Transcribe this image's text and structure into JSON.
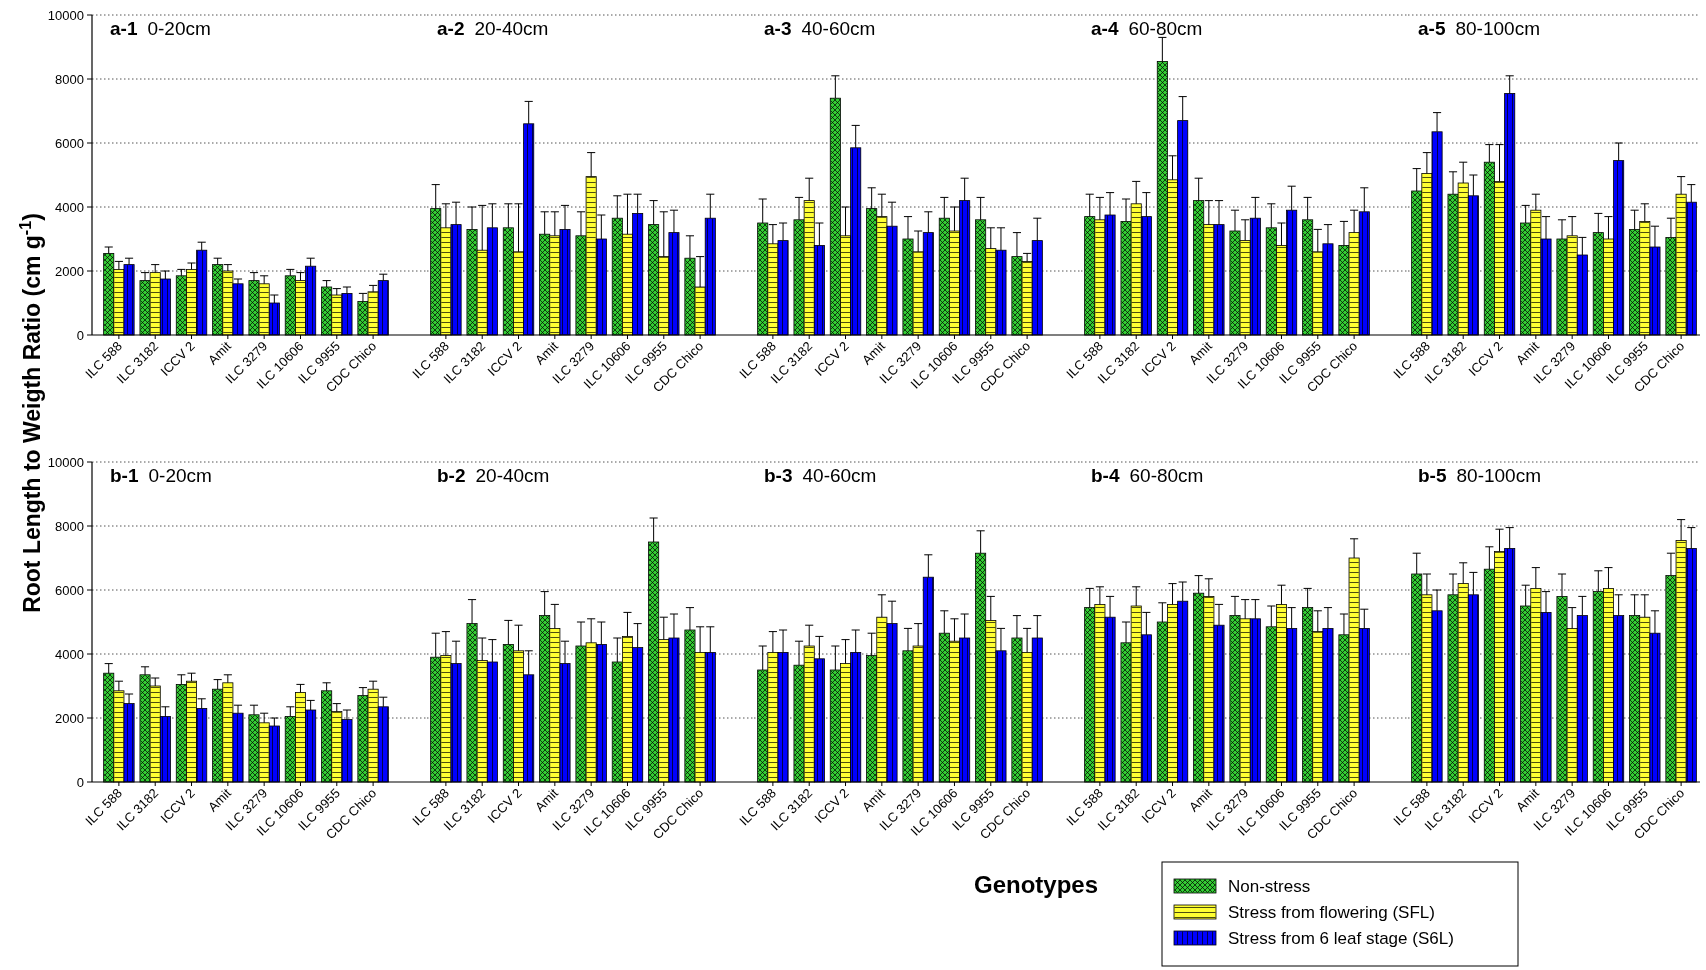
{
  "chart_data": [
    {
      "type": "bar",
      "title": "a-1 0-20cm",
      "ylabel": "Root Length to Weigth Ratio (cm g$^{-1}$)",
      "categories": [
        "ILC 588",
        "ILC 3182",
        "ICCV 2",
        "Amit",
        "ILC 3279",
        "ILC 10606",
        "ILC 9955",
        "CDC Chico"
      ],
      "ylim": [
        0,
        10000
      ],
      "yticks": [
        0,
        2000,
        4000,
        6000,
        8000,
        10000
      ],
      "grid": "y",
      "series": [
        {
          "color": "#33cc33",
          "values": [
            2550,
            1700,
            1850,
            2200,
            1700,
            1850,
            1500,
            1050
          ],
          "errors": [
            [
              2550,
              2750
            ],
            [
              1700,
              1950
            ],
            [
              1850,
              2050
            ],
            [
              2200,
              2400
            ],
            [
              1700,
              1950
            ],
            [
              1850,
              2050
            ],
            [
              1500,
              1700
            ],
            [
              1050,
              1300
            ]
          ]
        },
        {
          "color": "#ffff33",
          "values": [
            2050,
            1950,
            2050,
            2000,
            1600,
            1700,
            1250,
            1350
          ],
          "errors": [
            [
              2050,
              2300
            ],
            [
              1950,
              2200
            ],
            [
              2050,
              2250
            ],
            [
              2000,
              2200
            ],
            [
              1600,
              1850
            ],
            [
              1700,
              1950
            ],
            [
              1250,
              1450
            ],
            [
              1350,
              1550
            ]
          ]
        },
        {
          "color": "#0000ff",
          "values": [
            2200,
            1750,
            2650,
            1600,
            1000,
            2150,
            1300,
            1700
          ],
          "errors": [
            [
              2200,
              2400
            ],
            [
              1750,
              2000
            ],
            [
              2650,
              2900
            ],
            [
              1600,
              1750
            ],
            [
              1000,
              1250
            ],
            [
              2150,
              2400
            ],
            [
              1300,
              1500
            ],
            [
              1700,
              1900
            ]
          ]
        }
      ]
    },
    {
      "type": "bar",
      "title": "a-2 20-40cm",
      "categories": [
        "ILC 588",
        "ILC 3182",
        "ICCV 2",
        "Amit",
        "ILC 3279",
        "ILC 10606",
        "ILC 9955",
        "CDC Chico"
      ],
      "ylim": [
        0,
        10000
      ],
      "yticks": [
        0,
        2000,
        4000,
        6000,
        8000,
        10000
      ],
      "grid": "y",
      "tick_labels": "x",
      "series": [
        {
          "color": "#33cc33",
          "values": [
            3950,
            3300,
            3350,
            3150,
            3100,
            3650,
            3450,
            2400
          ],
          "errors": [
            [
              3950,
              4700
            ],
            [
              3300,
              4000
            ],
            [
              3350,
              4100
            ],
            [
              3150,
              3850
            ],
            [
              3100,
              3850
            ],
            [
              3650,
              4350
            ],
            [
              3450,
              4200
            ],
            [
              2400,
              3100
            ]
          ]
        },
        {
          "color": "#ffff33",
          "values": [
            3350,
            2650,
            2600,
            3100,
            4950,
            3150,
            2450,
            1500
          ],
          "errors": [
            [
              3350,
              4100
            ],
            [
              2650,
              4050
            ],
            [
              2600,
              4100
            ],
            [
              3100,
              3850
            ],
            [
              4950,
              5700
            ],
            [
              3150,
              4400
            ],
            [
              2450,
              3850
            ],
            [
              1500,
              2450
            ]
          ]
        },
        {
          "color": "#0000ff",
          "values": [
            3450,
            3350,
            6600,
            3300,
            3000,
            3800,
            3200,
            3650
          ],
          "errors": [
            [
              3450,
              4150
            ],
            [
              3350,
              4100
            ],
            [
              6600,
              7300
            ],
            [
              3300,
              4050
            ],
            [
              3000,
              3750
            ],
            [
              3800,
              4400
            ],
            [
              3200,
              3900
            ],
            [
              3650,
              4400
            ]
          ]
        }
      ]
    },
    {
      "type": "bar",
      "title": "a-3 40-60cm",
      "categories": [
        "ILC 588",
        "ILC 3182",
        "ICCV 2",
        "Amit",
        "ILC 3279",
        "ILC 10606",
        "ILC 9955",
        "CDC Chico"
      ],
      "ylim": [
        0,
        10000
      ],
      "yticks": [
        0,
        2000,
        4000,
        6000,
        8000,
        10000
      ],
      "grid": "y",
      "tick_labels": "x",
      "series": [
        {
          "color": "#33cc33",
          "values": [
            3500,
            3600,
            7400,
            3950,
            3000,
            3650,
            3600,
            2450
          ],
          "errors": [
            [
              3500,
              4250
            ],
            [
              3600,
              4300
            ],
            [
              7400,
              8100
            ],
            [
              3950,
              4600
            ],
            [
              3000,
              3700
            ],
            [
              3650,
              4300
            ],
            [
              3600,
              4300
            ],
            [
              2450,
              3200
            ]
          ]
        },
        {
          "color": "#ffff33",
          "values": [
            2850,
            4200,
            3100,
            3700,
            2600,
            3250,
            2700,
            2300
          ],
          "errors": [
            [
              2850,
              3450
            ],
            [
              4200,
              4900
            ],
            [
              3100,
              4000
            ],
            [
              3700,
              4400
            ],
            [
              2600,
              3250
            ],
            [
              3250,
              4000
            ],
            [
              2700,
              3350
            ],
            [
              2300,
              2550
            ]
          ]
        },
        {
          "color": "#0000ff",
          "values": [
            2950,
            2800,
            5850,
            3400,
            3200,
            4200,
            2650,
            2950
          ],
          "errors": [
            [
              2950,
              3500
            ],
            [
              2800,
              3500
            ],
            [
              5850,
              6550
            ],
            [
              3400,
              4150
            ],
            [
              3200,
              3850
            ],
            [
              4200,
              4900
            ],
            [
              2650,
              3350
            ],
            [
              2950,
              3650
            ]
          ]
        }
      ]
    },
    {
      "type": "bar",
      "title": "a-4 60-80cm",
      "categories": [
        "ILC 588",
        "ILC 3182",
        "ICCV 2",
        "Amit",
        "ILC 3279",
        "ILC 10606",
        "ILC 9955",
        "CDC Chico"
      ],
      "ylim": [
        0,
        10000
      ],
      "yticks": [
        0,
        2000,
        4000,
        6000,
        8000,
        10000
      ],
      "grid": "y",
      "tick_labels": "x",
      "series": [
        {
          "color": "#33cc33",
          "values": [
            3700,
            3550,
            8550,
            4200,
            3250,
            3350,
            3600,
            2800
          ],
          "errors": [
            [
              3700,
              4400
            ],
            [
              3550,
              4250
            ],
            [
              8550,
              9300
            ],
            [
              4200,
              4900
            ],
            [
              3250,
              3900
            ],
            [
              3350,
              4100
            ],
            [
              3600,
              4300
            ],
            [
              2800,
              3550
            ]
          ]
        },
        {
          "color": "#ffff33",
          "values": [
            3600,
            4100,
            4850,
            3450,
            2950,
            2800,
            2600,
            3200
          ],
          "errors": [
            [
              3600,
              4300
            ],
            [
              4100,
              4800
            ],
            [
              4850,
              5600
            ],
            [
              3450,
              4200
            ],
            [
              2950,
              3600
            ],
            [
              2800,
              3500
            ],
            [
              2600,
              3300
            ],
            [
              3200,
              3900
            ]
          ]
        },
        {
          "color": "#0000ff",
          "values": [
            3750,
            3700,
            6700,
            3450,
            3650,
            3900,
            2850,
            3850
          ],
          "errors": [
            [
              3750,
              4450
            ],
            [
              3700,
              4450
            ],
            [
              6700,
              7450
            ],
            [
              3450,
              4200
            ],
            [
              3650,
              4300
            ],
            [
              3900,
              4650
            ],
            [
              2850,
              3450
            ],
            [
              3850,
              4600
            ]
          ]
        }
      ]
    },
    {
      "type": "bar",
      "title": "a-5 80-100cm",
      "categories": [
        "ILC 588",
        "ILC 3182",
        "ICCV 2",
        "Amit",
        "ILC 3279",
        "ILC 10606",
        "ILC 9955",
        "CDC Chico"
      ],
      "ylim": [
        0,
        10000
      ],
      "yticks": [
        0,
        2000,
        4000,
        6000,
        8000,
        10000
      ],
      "grid": "y",
      "tick_labels": "x",
      "series": [
        {
          "color": "#33cc33",
          "values": [
            4500,
            4400,
            5400,
            3500,
            3000,
            3200,
            3300,
            3050
          ],
          "errors": [
            [
              4500,
              5200
            ],
            [
              4400,
              5100
            ],
            [
              5400,
              5950
            ],
            [
              3500,
              4050
            ],
            [
              3000,
              3600
            ],
            [
              3200,
              3800
            ],
            [
              3300,
              3900
            ],
            [
              3050,
              3650
            ]
          ]
        },
        {
          "color": "#ffff33",
          "values": [
            5050,
            4750,
            4800,
            3900,
            3100,
            3000,
            3550,
            4400
          ],
          "errors": [
            [
              5050,
              5700
            ],
            [
              4750,
              5400
            ],
            [
              4800,
              5950
            ],
            [
              3900,
              4400
            ],
            [
              3100,
              3700
            ],
            [
              3000,
              3700
            ],
            [
              3550,
              4100
            ],
            [
              4400,
              4950
            ]
          ]
        },
        {
          "color": "#0000ff",
          "values": [
            6350,
            4350,
            7550,
            3000,
            2500,
            5450,
            2750,
            4150
          ],
          "errors": [
            [
              6350,
              6950
            ],
            [
              4350,
              5000
            ],
            [
              7550,
              8100
            ],
            [
              3000,
              3700
            ],
            [
              2500,
              3050
            ],
            [
              5450,
              6000
            ],
            [
              2750,
              3400
            ],
            [
              4150,
              4700
            ]
          ]
        }
      ]
    },
    {
      "type": "bar",
      "title": "b-1 0-20cm",
      "categories": [
        "ILC 588",
        "ILC 3182",
        "ICCV 2",
        "Amit",
        "ILC 3279",
        "ILC 10606",
        "ILC 9955",
        "CDC Chico"
      ],
      "ylim": [
        0,
        10000
      ],
      "yticks": [
        0,
        2000,
        4000,
        6000,
        8000,
        10000
      ],
      "grid": "y",
      "series": [
        {
          "color": "#33cc33",
          "values": [
            3400,
            3350,
            3050,
            2900,
            2100,
            2050,
            2850,
            2700
          ],
          "errors": [
            [
              3400,
              3700
            ],
            [
              3350,
              3600
            ],
            [
              3050,
              3350
            ],
            [
              2900,
              3200
            ],
            [
              2100,
              2400
            ],
            [
              2050,
              2350
            ],
            [
              2850,
              3100
            ],
            [
              2700,
              2950
            ]
          ]
        },
        {
          "color": "#ffff33",
          "values": [
            2850,
            3000,
            3150,
            3100,
            1850,
            2800,
            2200,
            2900
          ],
          "errors": [
            [
              2850,
              3150
            ],
            [
              3000,
              3250
            ],
            [
              3150,
              3400
            ],
            [
              3100,
              3350
            ],
            [
              1850,
              2150
            ],
            [
              2800,
              3050
            ],
            [
              2200,
              2450
            ],
            [
              2900,
              3150
            ]
          ]
        },
        {
          "color": "#0000ff",
          "values": [
            2450,
            2050,
            2300,
            2150,
            1750,
            2250,
            1950,
            2350
          ],
          "errors": [
            [
              2450,
              2750
            ],
            [
              2050,
              2350
            ],
            [
              2300,
              2600
            ],
            [
              2150,
              2400
            ],
            [
              1750,
              2000
            ],
            [
              2250,
              2550
            ],
            [
              1950,
              2250
            ],
            [
              2350,
              2650
            ]
          ]
        }
      ]
    },
    {
      "type": "bar",
      "title": "b-2 20-40cm",
      "categories": [
        "ILC 588",
        "ILC 3182",
        "ICCV 2",
        "Amit",
        "ILC 3279",
        "ILC 10606",
        "ILC 9955",
        "CDC Chico"
      ],
      "ylim": [
        0,
        10000
      ],
      "yticks": [
        0,
        2000,
        4000,
        6000,
        8000,
        10000
      ],
      "grid": "y",
      "tick_labels": "x",
      "series": [
        {
          "color": "#33cc33",
          "values": [
            3900,
            4950,
            4300,
            5200,
            4250,
            3750,
            7500,
            4750
          ],
          "errors": [
            [
              3900,
              4650
            ],
            [
              4950,
              5700
            ],
            [
              4300,
              5050
            ],
            [
              5200,
              5950
            ],
            [
              4250,
              5000
            ],
            [
              3750,
              4500
            ],
            [
              7500,
              8250
            ],
            [
              4750,
              5450
            ]
          ]
        },
        {
          "color": "#ffff33",
          "values": [
            3950,
            3800,
            4100,
            4800,
            4350,
            4550,
            4450,
            4050
          ],
          "errors": [
            [
              3950,
              4700
            ],
            [
              3800,
              4500
            ],
            [
              4100,
              4900
            ],
            [
              4800,
              5550
            ],
            [
              4350,
              5100
            ],
            [
              4550,
              5300
            ],
            [
              4450,
              5150
            ],
            [
              4050,
              4850
            ]
          ]
        },
        {
          "color": "#0000ff",
          "values": [
            3700,
            3750,
            3350,
            3700,
            4300,
            4200,
            4500,
            4050
          ],
          "errors": [
            [
              3700,
              4400
            ],
            [
              3750,
              4450
            ],
            [
              3350,
              4100
            ],
            [
              3700,
              4400
            ],
            [
              4300,
              5000
            ],
            [
              4200,
              4950
            ],
            [
              4500,
              5250
            ],
            [
              4050,
              4850
            ]
          ]
        }
      ]
    },
    {
      "type": "bar",
      "title": "b-3 40-60cm",
      "xlabel": "Genotypes",
      "categories": [
        "ILC 588",
        "ILC 3182",
        "ICCV 2",
        "Amit",
        "ILC 3279",
        "ILC 10606",
        "ILC 9955",
        "CDC Chico"
      ],
      "ylim": [
        0,
        10000
      ],
      "yticks": [
        0,
        2000,
        4000,
        6000,
        8000,
        10000
      ],
      "grid": "y",
      "tick_labels": "x",
      "series": [
        {
          "color": "#33cc33",
          "values": [
            3500,
            3650,
            3500,
            3950,
            4100,
            4650,
            7150,
            4500
          ],
          "errors": [
            [
              3500,
              4250
            ],
            [
              3650,
              4400
            ],
            [
              3500,
              4250
            ],
            [
              3950,
              4650
            ],
            [
              4100,
              4800
            ],
            [
              4650,
              5350
            ],
            [
              7150,
              7850
            ],
            [
              4500,
              5200
            ]
          ]
        },
        {
          "color": "#ffff33",
          "values": [
            4050,
            4250,
            3700,
            5150,
            4250,
            4400,
            5050,
            4050
          ],
          "errors": [
            [
              4050,
              4700
            ],
            [
              4250,
              4900
            ],
            [
              3700,
              4450
            ],
            [
              5150,
              5850
            ],
            [
              4250,
              4950
            ],
            [
              4400,
              5100
            ],
            [
              5050,
              5800
            ],
            [
              4050,
              4800
            ]
          ]
        },
        {
          "color": "#0000ff",
          "values": [
            4050,
            3850,
            4050,
            4950,
            6400,
            4500,
            4100,
            4500
          ],
          "errors": [
            [
              4050,
              4750
            ],
            [
              3850,
              4550
            ],
            [
              4050,
              4750
            ],
            [
              4950,
              5650
            ],
            [
              6400,
              7100
            ],
            [
              4500,
              5250
            ],
            [
              4100,
              4800
            ],
            [
              4500,
              5200
            ]
          ]
        }
      ]
    },
    {
      "type": "bar",
      "title": "b-4 60-80cm",
      "categories": [
        "ILC 588",
        "ILC 3182",
        "ICCV 2",
        "Amit",
        "ILC 3279",
        "ILC 10606",
        "ILC 9955",
        "CDC Chico"
      ],
      "ylim": [
        0,
        10000
      ],
      "yticks": [
        0,
        2000,
        4000,
        6000,
        8000,
        10000
      ],
      "grid": "y",
      "tick_labels": "x",
      "series": [
        {
          "color": "#33cc33",
          "values": [
            5450,
            4350,
            5000,
            5900,
            5200,
            4850,
            5450,
            4600
          ],
          "errors": [
            [
              5450,
              6050
            ],
            [
              4350,
              5000
            ],
            [
              5000,
              5600
            ],
            [
              5900,
              6450
            ],
            [
              5200,
              5800
            ],
            [
              4850,
              5500
            ],
            [
              5450,
              6050
            ],
            [
              4600,
              5250
            ]
          ]
        },
        {
          "color": "#ffff33",
          "values": [
            5550,
            5500,
            5550,
            5800,
            5100,
            5550,
            4700,
            7000
          ],
          "errors": [
            [
              5550,
              6100
            ],
            [
              5500,
              6100
            ],
            [
              5550,
              6200
            ],
            [
              5800,
              6350
            ],
            [
              5100,
              5700
            ],
            [
              5550,
              6150
            ],
            [
              4700,
              5350
            ],
            [
              7000,
              7600
            ]
          ]
        },
        {
          "color": "#0000ff",
          "values": [
            5150,
            4600,
            5650,
            4900,
            5100,
            4800,
            4800,
            4800
          ],
          "errors": [
            [
              5150,
              5800
            ],
            [
              4600,
              5300
            ],
            [
              5650,
              6250
            ],
            [
              4900,
              5550
            ],
            [
              5100,
              5700
            ],
            [
              4800,
              5450
            ],
            [
              4800,
              5450
            ],
            [
              4800,
              5400
            ]
          ]
        }
      ]
    },
    {
      "type": "bar",
      "title": "b-5 80-100cm",
      "categories": [
        "ILC 588",
        "ILC 3182",
        "ICCV 2",
        "Amit",
        "ILC 3279",
        "ILC 10606",
        "ILC 9955",
        "CDC Chico"
      ],
      "ylim": [
        0,
        10000
      ],
      "yticks": [
        0,
        2000,
        4000,
        6000,
        8000,
        10000
      ],
      "grid": "y",
      "tick_labels": "x",
      "legend": "bottom left",
      "series": [
        {
          "name": "Non-stress",
          "color": "#33cc33",
          "values": [
            6500,
            5850,
            6650,
            5500,
            5800,
            5950,
            5200,
            6450
          ],
          "errors": [
            [
              6500,
              7150
            ],
            [
              5850,
              6500
            ],
            [
              6650,
              7350
            ],
            [
              5500,
              6150
            ],
            [
              5800,
              6500
            ],
            [
              5950,
              6600
            ],
            [
              5200,
              5850
            ],
            [
              6450,
              7150
            ]
          ]
        },
        {
          "name": "Stress from flowering (SFL)",
          "color": "#ffff33",
          "values": [
            5850,
            6200,
            7200,
            6050,
            4800,
            6050,
            5150,
            7550
          ],
          "errors": [
            [
              5850,
              6500
            ],
            [
              6200,
              6850
            ],
            [
              7200,
              7900
            ],
            [
              6050,
              6700
            ],
            [
              4800,
              5450
            ],
            [
              6050,
              6700
            ],
            [
              5150,
              5850
            ],
            [
              7550,
              8200
            ]
          ]
        },
        {
          "name": "Stress from 6 leaf stage (S6L)",
          "color": "#0000ff",
          "values": [
            5350,
            5850,
            7300,
            5300,
            5200,
            5200,
            4650,
            7300
          ],
          "errors": [
            [
              5350,
              6000
            ],
            [
              5850,
              6550
            ],
            [
              7300,
              7950
            ],
            [
              5300,
              5950
            ],
            [
              5200,
              5800
            ],
            [
              5200,
              5850
            ],
            [
              4650,
              5350
            ],
            [
              7300,
              7950
            ]
          ]
        }
      ]
    }
  ]
}
